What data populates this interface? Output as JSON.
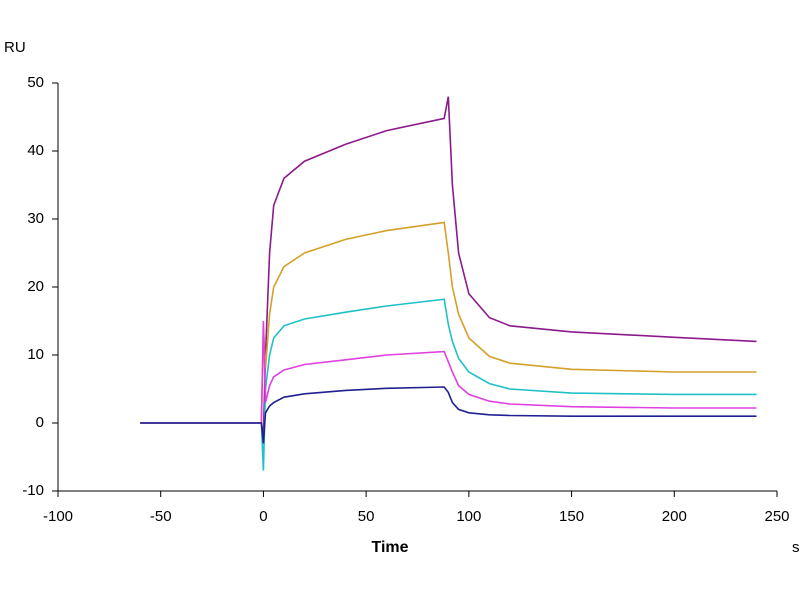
{
  "chart_data": {
    "type": "line",
    "xlabel": "Time",
    "ylabel": "RU",
    "xunit": "s",
    "x": [
      -60,
      -30,
      -1,
      0,
      1,
      3,
      5,
      10,
      20,
      40,
      60,
      88,
      90,
      92,
      95,
      100,
      110,
      120,
      150,
      200,
      240
    ],
    "series": [
      {
        "color": "#8b1a8b",
        "values": [
          0,
          0,
          0,
          -2,
          10,
          25,
          32,
          36,
          38.5,
          41,
          43,
          44.8,
          48,
          35,
          25,
          19,
          15.5,
          14.3,
          13.4,
          12.6,
          12
        ]
      },
      {
        "color": "#d4a02a",
        "values": [
          0,
          0,
          0,
          14,
          8,
          16,
          20,
          23,
          25,
          27,
          28.3,
          29.5,
          25,
          20,
          16,
          12.5,
          9.8,
          8.8,
          7.9,
          7.5,
          7.5
        ]
      },
      {
        "color": "#20c0c8",
        "values": [
          0,
          0,
          0,
          -7,
          5,
          10,
          12.5,
          14.3,
          15.3,
          16.3,
          17.2,
          18.2,
          14.5,
          12,
          9.5,
          7.5,
          5.8,
          5,
          4.4,
          4.2,
          4.2
        ]
      },
      {
        "color": "#e040e0",
        "values": [
          0,
          0,
          0,
          15,
          3,
          5.5,
          6.8,
          7.8,
          8.6,
          9.3,
          10,
          10.5,
          9,
          7.5,
          5.5,
          4.2,
          3.2,
          2.8,
          2.4,
          2.2,
          2.2
        ]
      },
      {
        "color": "#202090",
        "values": [
          0,
          0,
          0,
          -3,
          1.5,
          2.5,
          3,
          3.8,
          4.3,
          4.8,
          5.1,
          5.3,
          4.5,
          3,
          2,
          1.5,
          1.2,
          1.1,
          1,
          1,
          1
        ]
      }
    ],
    "xlim": [
      -100,
      250
    ],
    "ylim": [
      -10,
      50
    ],
    "xticks": [
      -100,
      -50,
      0,
      50,
      100,
      150,
      200,
      250
    ],
    "yticks": [
      -10,
      0,
      10,
      20,
      30,
      40,
      50
    ],
    "grid": false
  }
}
